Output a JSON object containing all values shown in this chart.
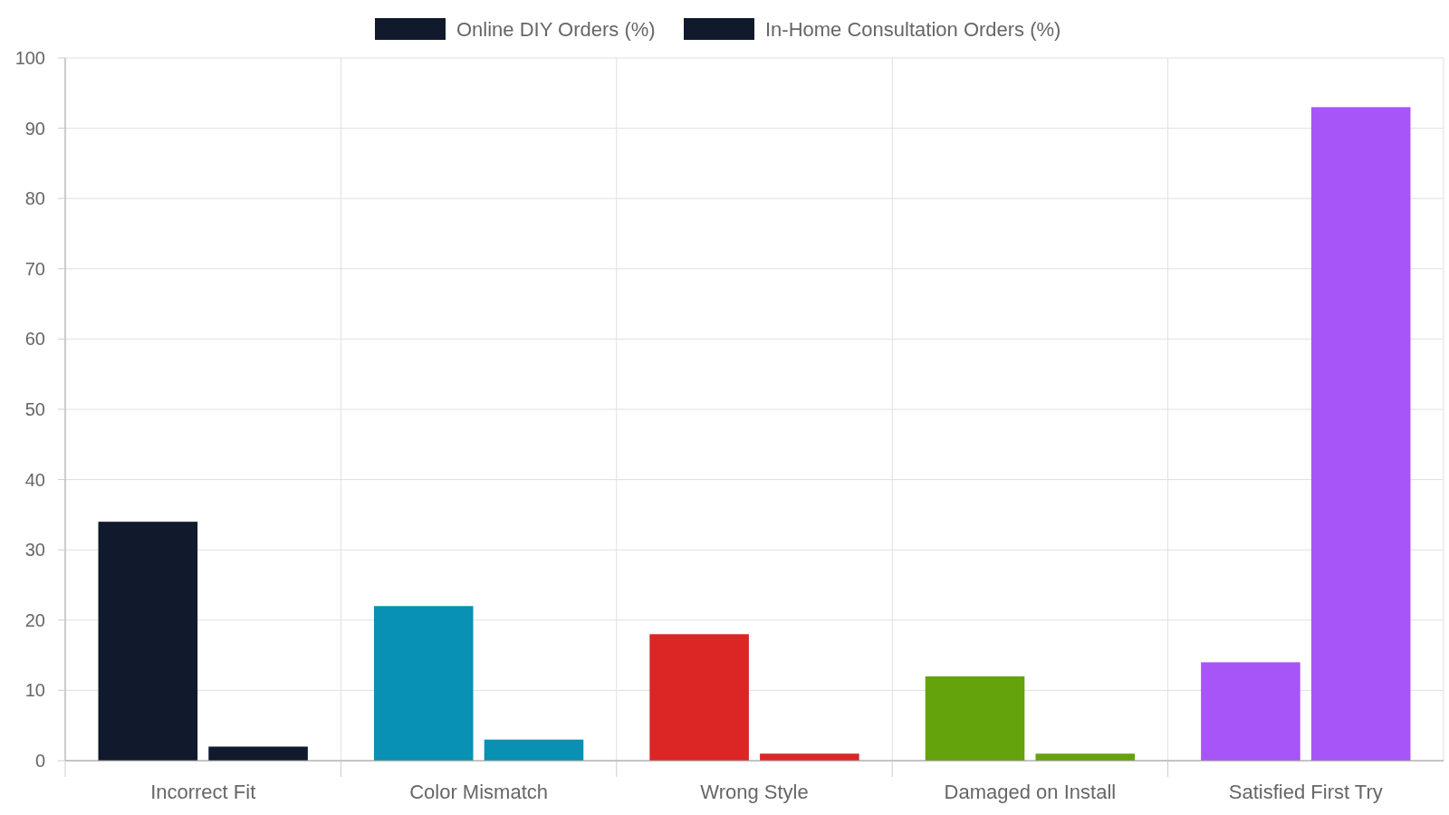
{
  "chart_data": {
    "type": "bar",
    "categories": [
      "Incorrect Fit",
      "Color Mismatch",
      "Wrong Style",
      "Damaged on Install",
      "Satisfied First Try"
    ],
    "series": [
      {
        "name": "Online DIY Orders (%)",
        "color": "#111a2c",
        "colors": [
          "#111a2c",
          "#0891b2",
          "#dc2626",
          "#65a30d",
          "#a855f7"
        ],
        "values": [
          34,
          22,
          18,
          12,
          14
        ]
      },
      {
        "name": "In-Home Consultation Orders (%)",
        "color": "#111a2c",
        "colors": [
          "#111a2c",
          "#0891b2",
          "#dc2626",
          "#65a30d",
          "#a855f7"
        ],
        "values": [
          2,
          3,
          1,
          1,
          93
        ]
      }
    ],
    "ylim": [
      0,
      100
    ],
    "yticks": [
      0,
      10,
      20,
      30,
      40,
      50,
      60,
      70,
      80,
      90,
      100
    ],
    "grid": true,
    "legend": "top"
  }
}
